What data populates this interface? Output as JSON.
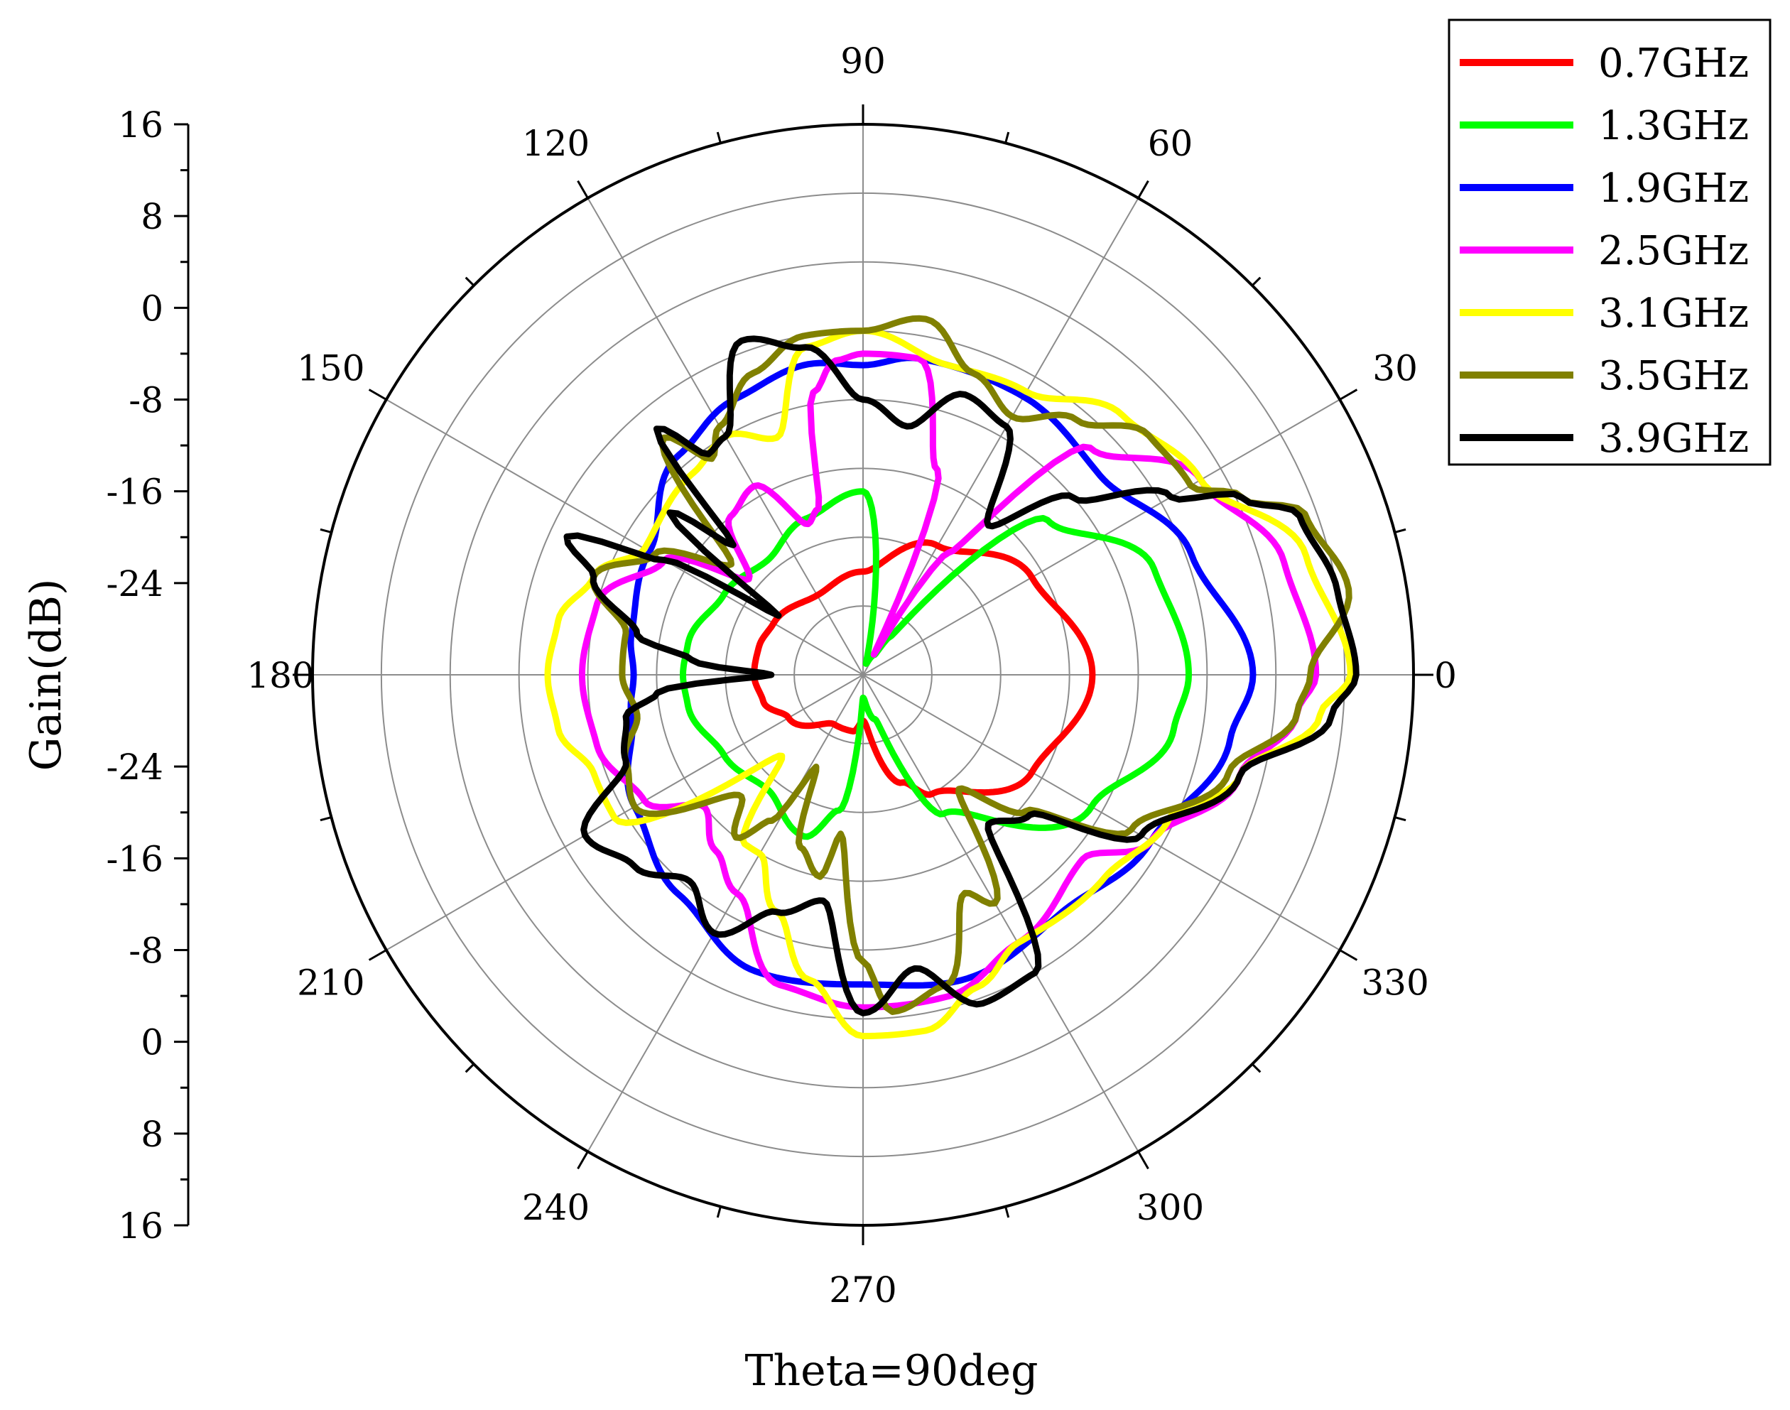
{
  "chart_data": {
    "type": "polar-line",
    "ylabel": "Gain(dB)",
    "xlabel": "Theta=90deg",
    "radial_range": [
      -32,
      16
    ],
    "radial_axis_ticks": [
      "16",
      "8",
      "0",
      "-8",
      "-16",
      "-24",
      "-24",
      "-16",
      "-8",
      "0",
      "8",
      "16"
    ],
    "angle_ticks": [
      "0",
      "30",
      "60",
      "90",
      "120",
      "150",
      "180",
      "210",
      "240",
      "270",
      "300",
      "330"
    ],
    "grid": true,
    "legend_position": "top-right",
    "series": [
      {
        "name": "0.7GHz",
        "color": "#ff0000",
        "points": [
          [
            0,
            -12
          ],
          [
            30,
            -15
          ],
          [
            60,
            -19
          ],
          [
            90,
            -23
          ],
          [
            120,
            -24
          ],
          [
            150,
            -23
          ],
          [
            165,
            -22.6
          ],
          [
            180,
            -22.5
          ],
          [
            195,
            -23
          ],
          [
            210,
            -24.5
          ],
          [
            240,
            -27
          ],
          [
            260,
            -27
          ],
          [
            270,
            -28
          ],
          [
            290,
            -22
          ],
          [
            300,
            -20
          ],
          [
            330,
            -15
          ]
        ]
      },
      {
        "name": "1.3GHz",
        "color": "#00ff00",
        "points": [
          [
            0,
            -3.6
          ],
          [
            20,
            -5
          ],
          [
            40,
            -11
          ],
          [
            55,
            -28
          ],
          [
            60,
            -30
          ],
          [
            75,
            -31
          ],
          [
            90,
            -16
          ],
          [
            110,
            -17.5
          ],
          [
            130,
            -19
          ],
          [
            150,
            -18
          ],
          [
            170,
            -16.5
          ],
          [
            180,
            -16.3
          ],
          [
            190,
            -16.5
          ],
          [
            210,
            -18
          ],
          [
            230,
            -19
          ],
          [
            250,
            -17
          ],
          [
            260,
            -20
          ],
          [
            270,
            -30
          ],
          [
            285,
            -28
          ],
          [
            300,
            -18
          ],
          [
            330,
            -9
          ],
          [
            350,
            -4.5
          ]
        ]
      },
      {
        "name": "1.9GHz",
        "color": "#0000ff",
        "points": [
          [
            0,
            2
          ],
          [
            20,
            -1.5
          ],
          [
            40,
            -5
          ],
          [
            60,
            -4
          ],
          [
            80,
            -4
          ],
          [
            90,
            -5
          ],
          [
            100,
            -4.5
          ],
          [
            115,
            -5.5
          ],
          [
            130,
            -7
          ],
          [
            150,
            -10.5
          ],
          [
            170,
            -11.5
          ],
          [
            180,
            -12
          ],
          [
            190,
            -11.5
          ],
          [
            210,
            -9
          ],
          [
            230,
            -7
          ],
          [
            250,
            -4.5
          ],
          [
            270,
            -5
          ],
          [
            290,
            -4
          ],
          [
            310,
            -5
          ],
          [
            330,
            -3
          ],
          [
            350,
            0.5
          ]
        ]
      },
      {
        "name": "2.5GHz",
        "color": "#ff00ff",
        "points": [
          [
            0,
            7.5
          ],
          [
            15,
            6
          ],
          [
            30,
            2
          ],
          [
            45,
            -4
          ],
          [
            55,
            -19
          ],
          [
            62,
            -30
          ],
          [
            70,
            -13
          ],
          [
            80,
            -4
          ],
          [
            90,
            -4
          ],
          [
            95,
            -4.5
          ],
          [
            100,
            -7
          ],
          [
            105,
            -17
          ],
          [
            110,
            -18
          ],
          [
            120,
            -13
          ],
          [
            130,
            -14
          ],
          [
            140,
            -19
          ],
          [
            150,
            -12
          ],
          [
            165,
            -8
          ],
          [
            180,
            -7.5
          ],
          [
            195,
            -8
          ],
          [
            210,
            -10
          ],
          [
            220,
            -14
          ],
          [
            230,
            -12
          ],
          [
            240,
            -10
          ],
          [
            255,
            -4
          ],
          [
            270,
            -3
          ],
          [
            285,
            -3
          ],
          [
            300,
            -5
          ],
          [
            320,
            -7
          ],
          [
            330,
            -3
          ],
          [
            345,
            2
          ],
          [
            355,
            6
          ]
        ]
      },
      {
        "name": "3.1GHz",
        "color": "#ffff00",
        "points": [
          [
            0,
            10.5
          ],
          [
            15,
            8
          ],
          [
            30,
            2
          ],
          [
            45,
            0
          ],
          [
            60,
            -3.5
          ],
          [
            75,
            -4
          ],
          [
            90,
            -2
          ],
          [
            100,
            -3
          ],
          [
            110,
            -10
          ],
          [
            120,
            -8
          ],
          [
            130,
            -9
          ],
          [
            150,
            -10
          ],
          [
            160,
            -7
          ],
          [
            170,
            -5
          ],
          [
            180,
            -4.5
          ],
          [
            190,
            -5
          ],
          [
            200,
            -7
          ],
          [
            210,
            -7
          ],
          [
            225,
            -22
          ],
          [
            235,
            -14
          ],
          [
            240,
            -14
          ],
          [
            250,
            -10
          ],
          [
            260,
            -5
          ],
          [
            270,
            -0.5
          ],
          [
            280,
            -0.5
          ],
          [
            290,
            -3
          ],
          [
            300,
            -5
          ],
          [
            320,
            -4.5
          ],
          [
            335,
            -2.5
          ],
          [
            345,
            2
          ],
          [
            355,
            8
          ]
        ]
      },
      {
        "name": "3.5GHz",
        "color": "#808000",
        "points": [
          [
            0,
            7
          ],
          [
            10,
            11
          ],
          [
            20,
            9
          ],
          [
            25,
            4.5
          ],
          [
            30,
            1
          ],
          [
            40,
            0.5
          ],
          [
            50,
            -3
          ],
          [
            60,
            -6
          ],
          [
            70,
            -4
          ],
          [
            80,
            -0.5
          ],
          [
            90,
            -2
          ],
          [
            100,
            -2
          ],
          [
            110,
            -4
          ],
          [
            120,
            -7
          ],
          [
            125,
            -9
          ],
          [
            130,
            -5
          ],
          [
            140,
            -17
          ],
          [
            150,
            -11
          ],
          [
            160,
            -7
          ],
          [
            170,
            -11
          ],
          [
            180,
            -11
          ],
          [
            190,
            -12
          ],
          [
            200,
            -10
          ],
          [
            210,
            -9
          ],
          [
            225,
            -17
          ],
          [
            232,
            -14
          ],
          [
            238,
            -17
          ],
          [
            243,
            -23
          ],
          [
            250,
            -16
          ],
          [
            258,
            -14
          ],
          [
            262,
            -18
          ],
          [
            270,
            -7
          ],
          [
            275,
            -2.5
          ],
          [
            285,
            -4
          ],
          [
            295,
            -11
          ],
          [
            300,
            -9
          ],
          [
            310,
            -19
          ],
          [
            320,
            -13.5
          ],
          [
            330,
            -5
          ],
          [
            345,
            1
          ],
          [
            355,
            6
          ]
        ]
      },
      {
        "name": "3.9GHz",
        "color": "#000000",
        "points": [
          [
            0,
            11
          ],
          [
            10,
            10
          ],
          [
            20,
            8.5
          ],
          [
            25,
            4.5
          ],
          [
            30,
            -1
          ],
          [
            40,
            -8
          ],
          [
            50,
            -15
          ],
          [
            60,
            -7
          ],
          [
            70,
            -6
          ],
          [
            80,
            -10
          ],
          [
            90,
            -8
          ],
          [
            100,
            -3
          ],
          [
            110,
            -1
          ],
          [
            120,
            -8
          ],
          [
            125,
            -8.5
          ],
          [
            130,
            -4
          ],
          [
            135,
            -16
          ],
          [
            140,
            -10
          ],
          [
            145,
            -23
          ],
          [
            150,
            -12
          ],
          [
            155,
            -3.5
          ],
          [
            160,
            -7
          ],
          [
            170,
            -12
          ],
          [
            175,
            -17
          ],
          [
            180,
            -24
          ],
          [
            185,
            -14
          ],
          [
            190,
            -11
          ],
          [
            200,
            -10
          ],
          [
            210,
            -4
          ],
          [
            220,
            -6
          ],
          [
            230,
            -8.5
          ],
          [
            240,
            -6
          ],
          [
            250,
            -10
          ],
          [
            260,
            -12
          ],
          [
            270,
            -2.5
          ],
          [
            280,
            -6
          ],
          [
            290,
            -1.5
          ],
          [
            300,
            -2
          ],
          [
            310,
            -15
          ],
          [
            320,
            -13
          ],
          [
            330,
            -4
          ],
          [
            345,
            2
          ],
          [
            355,
            9
          ]
        ]
      }
    ]
  }
}
